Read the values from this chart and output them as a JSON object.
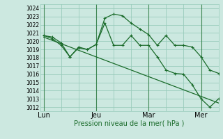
{
  "xlabel": "Pression niveau de la mer( hPa )",
  "bg_color": "#cce8e0",
  "grid_color": "#99ccbb",
  "line_color": "#1a6b2a",
  "ylim": [
    1011.5,
    1024.5
  ],
  "yticks": [
    1012,
    1013,
    1014,
    1015,
    1016,
    1017,
    1018,
    1019,
    1020,
    1021,
    1022,
    1023,
    1024
  ],
  "day_labels": [
    "Lun",
    "Jeu",
    "Mar",
    "Mer"
  ],
  "day_positions": [
    0,
    30,
    60,
    90
  ],
  "vline_positions": [
    0,
    30,
    60,
    90
  ],
  "xlim": [
    -2,
    100
  ],
  "series1_x": [
    0,
    5,
    10,
    15,
    20,
    25,
    30,
    35,
    40,
    45,
    50,
    55,
    60,
    65,
    70,
    75,
    80,
    85,
    90,
    95,
    100
  ],
  "series1_y": [
    1020.7,
    1020.3,
    1019.5,
    1018.1,
    1019.2,
    1019.0,
    1019.6,
    1022.8,
    1023.3,
    1023.1,
    1022.2,
    1021.5,
    1020.8,
    1019.5,
    1020.7,
    1019.5,
    1019.5,
    1019.3,
    1018.1,
    1016.5,
    1016.1
  ],
  "series2_x": [
    0,
    5,
    10,
    15,
    20,
    25,
    30,
    35,
    40,
    45,
    50,
    55,
    60,
    65,
    70,
    75,
    80,
    85,
    90,
    95,
    100
  ],
  "series2_y": [
    1020.7,
    1020.5,
    1019.8,
    1018.1,
    1019.3,
    1019.0,
    1019.6,
    1022.2,
    1019.5,
    1019.5,
    1020.7,
    1019.5,
    1019.5,
    1018.1,
    1016.5,
    1016.1,
    1016.0,
    1014.7,
    1013.0,
    1012.0,
    1013.0
  ],
  "trend_x": [
    0,
    100
  ],
  "trend_y": [
    1020.5,
    1012.5
  ],
  "marker_size": 3,
  "linewidth": 0.9,
  "tick_fontsize": 5.5,
  "xlabel_fontsize": 7
}
